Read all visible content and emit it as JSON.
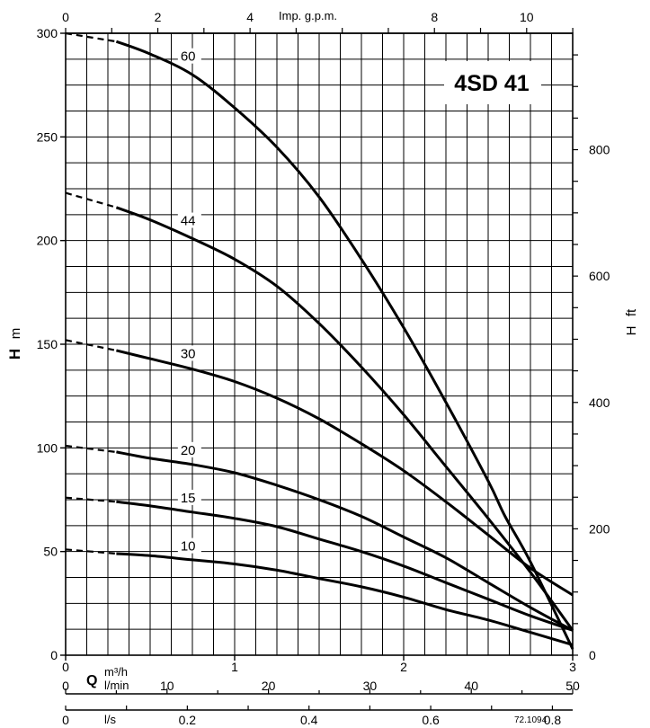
{
  "chart_data": {
    "type": "line",
    "title": "4SD 41",
    "code": "72.1094",
    "y_left": {
      "symbol": "H",
      "unit": "m",
      "range": [
        0,
        300
      ],
      "ticks": [
        0,
        50,
        100,
        150,
        200,
        250,
        300
      ]
    },
    "y_right": {
      "symbol": "H",
      "unit": "ft",
      "ticks": [
        0,
        200,
        400,
        600,
        800
      ]
    },
    "x_top": {
      "label": "Imp. g.p.m.",
      "ticks": [
        0,
        2,
        4,
        8,
        10
      ]
    },
    "x_m3h": {
      "symbol": "Q",
      "unit": "m³/h",
      "range": [
        0,
        3
      ],
      "ticks": [
        0,
        1,
        2,
        3
      ]
    },
    "x_lmin": {
      "unit": "l/min",
      "ticks": [
        0,
        10,
        20,
        30,
        40,
        50
      ]
    },
    "x_ls": {
      "unit": "l/s",
      "ticks": [
        "0",
        "0.2",
        "0.4",
        "0.6",
        "0.8"
      ]
    },
    "grid": true,
    "series": [
      {
        "name": "60",
        "shutoff": 300,
        "points": [
          [
            0.3,
            296
          ],
          [
            0.5,
            290
          ],
          [
            0.75,
            280
          ],
          [
            1.0,
            264
          ],
          [
            1.25,
            245
          ],
          [
            1.5,
            221
          ],
          [
            1.75,
            191
          ],
          [
            2.0,
            158
          ],
          [
            2.25,
            122
          ],
          [
            2.5,
            84
          ],
          [
            2.6,
            67
          ],
          [
            2.75,
            45
          ],
          [
            3.0,
            3
          ]
        ]
      },
      {
        "name": "44",
        "shutoff": 223,
        "points": [
          [
            0.3,
            216
          ],
          [
            0.5,
            210
          ],
          [
            0.75,
            201
          ],
          [
            1.0,
            191
          ],
          [
            1.25,
            178
          ],
          [
            1.5,
            160
          ],
          [
            1.75,
            139
          ],
          [
            2.0,
            116
          ],
          [
            2.25,
            91
          ],
          [
            2.5,
            66
          ],
          [
            2.75,
            40
          ],
          [
            3.0,
            12
          ]
        ]
      },
      {
        "name": "30",
        "shutoff": 152,
        "points": [
          [
            0.3,
            147
          ],
          [
            0.5,
            143
          ],
          [
            0.75,
            138
          ],
          [
            1.0,
            132
          ],
          [
            1.25,
            124
          ],
          [
            1.5,
            114
          ],
          [
            1.75,
            102
          ],
          [
            2.0,
            89
          ],
          [
            2.25,
            74
          ],
          [
            2.5,
            58
          ],
          [
            2.75,
            42
          ],
          [
            3.0,
            29
          ]
        ]
      },
      {
        "name": "20",
        "shutoff": 101,
        "points": [
          [
            0.3,
            98
          ],
          [
            0.5,
            95
          ],
          [
            0.75,
            92
          ],
          [
            1.0,
            88
          ],
          [
            1.25,
            82
          ],
          [
            1.5,
            75
          ],
          [
            1.75,
            67
          ],
          [
            2.0,
            57
          ],
          [
            2.25,
            47
          ],
          [
            2.5,
            35
          ],
          [
            2.75,
            23
          ],
          [
            3.0,
            12
          ]
        ]
      },
      {
        "name": "15",
        "shutoff": 76,
        "points": [
          [
            0.3,
            74
          ],
          [
            0.5,
            72
          ],
          [
            0.75,
            69
          ],
          [
            1.0,
            66
          ],
          [
            1.25,
            62
          ],
          [
            1.5,
            56
          ],
          [
            1.75,
            50
          ],
          [
            2.0,
            43
          ],
          [
            2.25,
            35
          ],
          [
            2.5,
            27
          ],
          [
            2.75,
            19
          ],
          [
            3.0,
            12
          ]
        ]
      },
      {
        "name": "10",
        "shutoff": 51,
        "points": [
          [
            0.3,
            49
          ],
          [
            0.5,
            48
          ],
          [
            0.75,
            46
          ],
          [
            1.0,
            44
          ],
          [
            1.25,
            41
          ],
          [
            1.5,
            37
          ],
          [
            1.75,
            33
          ],
          [
            2.0,
            28
          ],
          [
            2.25,
            22
          ],
          [
            2.5,
            17
          ],
          [
            2.75,
            11
          ],
          [
            3.0,
            5
          ]
        ]
      }
    ]
  }
}
